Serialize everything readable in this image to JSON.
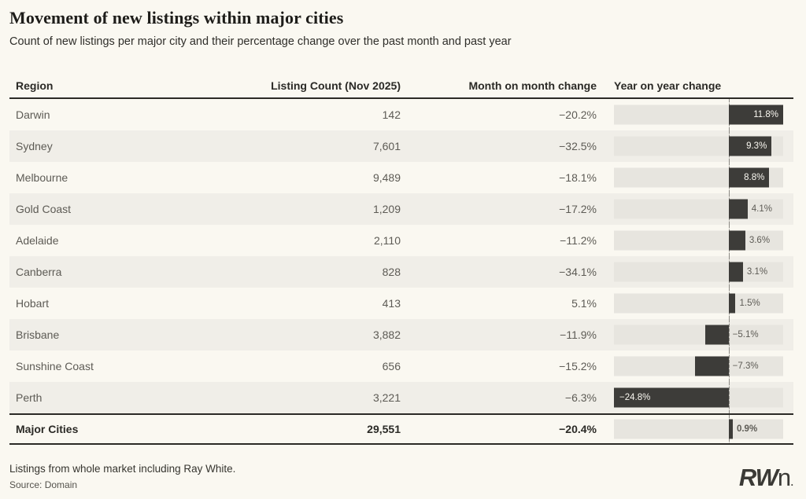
{
  "header": {
    "title": "Movement of new listings within major cities",
    "subtitle": "Count of new listings per major city and their percentage change over the past month and past year"
  },
  "table": {
    "columns": {
      "region": "Region",
      "count": "Listing Count (Nov 2025)",
      "mom": "Month on month change",
      "yoy": "Year on year change"
    }
  },
  "chart_data": {
    "type": "table",
    "title": "Movement of new listings within major cities",
    "subtitle": "Count of new listings per major city and their percentage change over the past month and past year",
    "columns": [
      "Region",
      "Listing Count (Nov 2025)",
      "Month on month change",
      "Year on year change"
    ],
    "bar_column": "Year on year change",
    "bar_axis": {
      "min": -24.8,
      "max": 11.8,
      "zero_line": true,
      "unit": "%"
    },
    "rows": [
      {
        "region": "Darwin",
        "count": "142",
        "mom": "−20.2%",
        "yoy": 11.8,
        "yoy_label": "11.8%"
      },
      {
        "region": "Sydney",
        "count": "7,601",
        "mom": "−32.5%",
        "yoy": 9.3,
        "yoy_label": "9.3%"
      },
      {
        "region": "Melbourne",
        "count": "9,489",
        "mom": "−18.1%",
        "yoy": 8.8,
        "yoy_label": "8.8%"
      },
      {
        "region": "Gold Coast",
        "count": "1,209",
        "mom": "−17.2%",
        "yoy": 4.1,
        "yoy_label": "4.1%"
      },
      {
        "region": "Adelaide",
        "count": "2,110",
        "mom": "−11.2%",
        "yoy": 3.6,
        "yoy_label": "3.6%"
      },
      {
        "region": "Canberra",
        "count": "828",
        "mom": "−34.1%",
        "yoy": 3.1,
        "yoy_label": "3.1%"
      },
      {
        "region": "Hobart",
        "count": "413",
        "mom": "5.1%",
        "yoy": 1.5,
        "yoy_label": "1.5%"
      },
      {
        "region": "Brisbane",
        "count": "3,882",
        "mom": "−11.9%",
        "yoy": -5.1,
        "yoy_label": "−5.1%"
      },
      {
        "region": "Sunshine Coast",
        "count": "656",
        "mom": "−15.2%",
        "yoy": -7.3,
        "yoy_label": "−7.3%"
      },
      {
        "region": "Perth",
        "count": "3,221",
        "mom": "−6.3%",
        "yoy": -24.8,
        "yoy_label": "−24.8%"
      }
    ],
    "total_row": {
      "region": "Major Cities",
      "count": "29,551",
      "mom": "−20.4%",
      "yoy": 0.9,
      "yoy_label": "0.9%"
    },
    "colors": {
      "bar": "#3d3c39",
      "track": "#e7e5df",
      "accent_dark": "#2b2a26",
      "background": "#faf8f1",
      "alt_row": "#f0eee8"
    }
  },
  "footer": {
    "note": "Listings from whole market including Ray White.",
    "source": "Source: Domain",
    "logo": {
      "rw": "RW",
      "n": "n",
      "mark": "."
    }
  }
}
